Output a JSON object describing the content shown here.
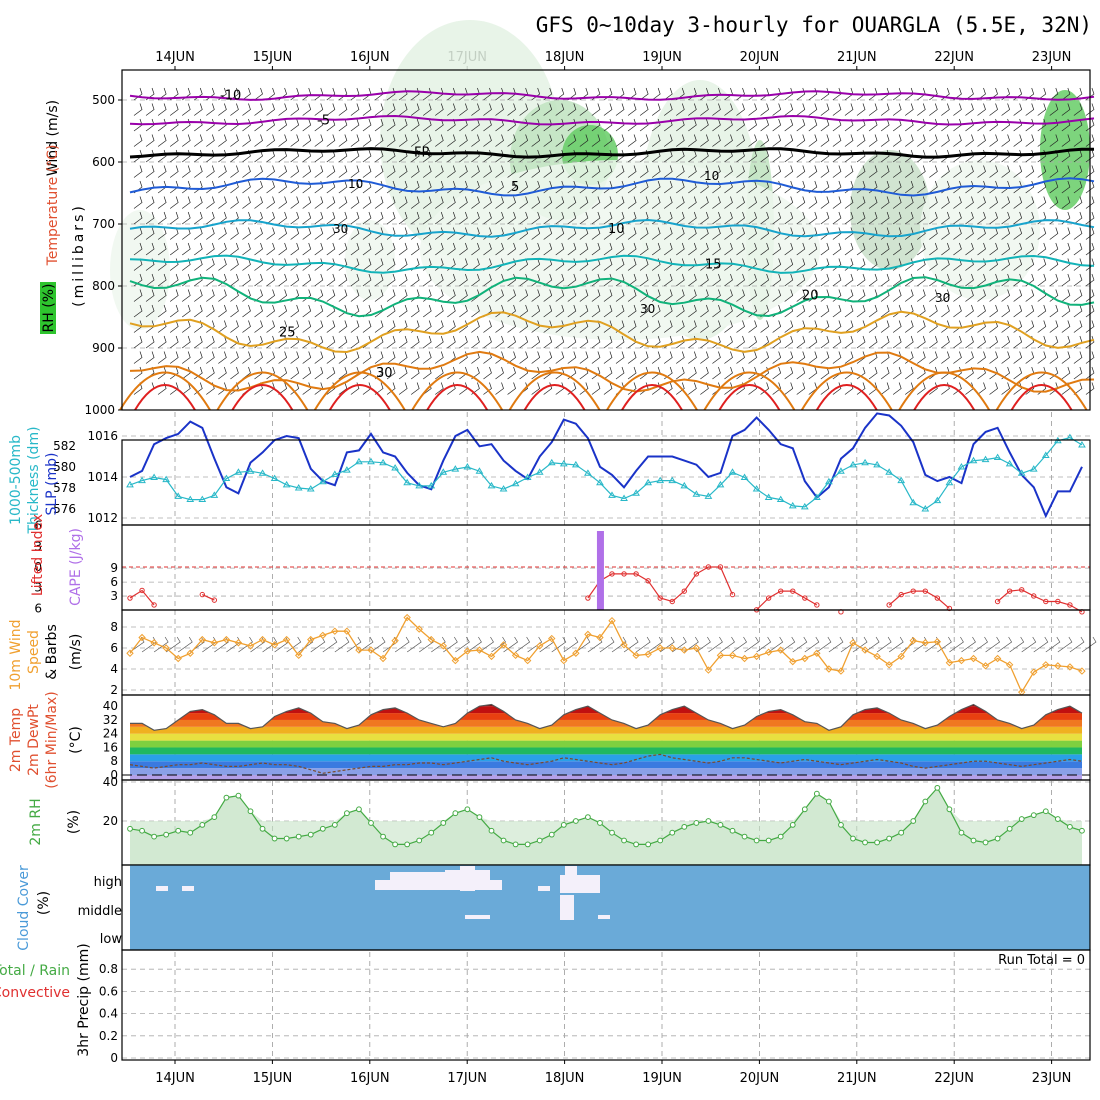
{
  "title": "GFS 0~10day 3-hourly for OUARGLA (5.5E, 32N)",
  "dates": [
    "14JUN",
    "15JUN",
    "16JUN",
    "17JUN",
    "18JUN",
    "19JUN",
    "20JUN",
    "21JUN",
    "22JUN",
    "23JUN"
  ],
  "colors": {
    "temp_cold": "#9900aa",
    "temp_mid": "#1f5bd6",
    "temp_cool": "#17a3cc",
    "temp_warm": "#12b3b8",
    "temp_20": "#10b27a",
    "temp_25": "#e0a020",
    "temp_30": "#e07a10",
    "temp_hot": "#e02020",
    "rh_shade": "#2ec42e",
    "slp": "#1a33c8",
    "thickness": "#28b8c8",
    "lifted_index": "#e03030",
    "cape": "#b070e8",
    "wind10m": "#f0a030",
    "cloud": "#6aaad8",
    "rh2m": "#44aa44"
  },
  "labels": {
    "upper_wind": "Wind (m/s)",
    "upper_temp": "Temperature (°C)",
    "upper_rh": "RH (%)",
    "upper_axis": "(millibars)",
    "thick_1": "1000-500mb",
    "thick_2": "Thickness (dm)",
    "slp": "SLP (mb)",
    "li": "Lifted Index",
    "cape": "CAPE (J/kg)",
    "wind_1": "10m Wind",
    "wind_2": "Speed",
    "wind_3": "& Barbs",
    "wind_unit": "(m/s)",
    "t_1": "2m Temp",
    "t_2": "2m DewPt",
    "t_3": "(6hr Min/Max)",
    "t_unit": "(°C)",
    "rh_1": "2m RH",
    "rh_unit": "(%)",
    "cc_1": "Cloud Cover",
    "cc_unit": "(%)",
    "cc_high": "high",
    "cc_middle": "middle",
    "cc_low": "low",
    "pr_1": "Total / Rain",
    "pr_2": "Convective",
    "pr_3": "3hr Precip (mm)",
    "run_total": "Run Total = 0"
  },
  "chart_data": [
    {
      "type": "line",
      "panel": "upper-air",
      "ylabel": "millibars",
      "yticks": [
        500,
        600,
        700,
        800,
        900,
        1000
      ],
      "isotherms": [
        {
          "name": "-10",
          "pressure": 493
        },
        {
          "name": "-5",
          "pressure": 533
        },
        {
          "name": "FR",
          "pressure": 585
        },
        {
          "name": "5",
          "pressure": 640
        },
        {
          "name": "10",
          "pressure": 708
        },
        {
          "name": "15",
          "pressure": 765
        },
        {
          "name": "20",
          "pressure": 815
        },
        {
          "name": "25",
          "pressure": 875
        },
        {
          "name": "30",
          "pressure": 940
        }
      ],
      "rh_contours": [
        "10",
        "30",
        "30",
        "10",
        "30"
      ]
    },
    {
      "type": "line",
      "panel": "slp-thickness",
      "y1label": "1000-500mb Thickness (dm)",
      "y1ticks": [
        576,
        578,
        580,
        582
      ],
      "y2label": "SLP (mb)",
      "y2ticks": [
        1012,
        1014,
        1016
      ],
      "series": [
        {
          "name": "SLP",
          "values": [
            1014.0,
            1014.3,
            1015.6,
            1015.9,
            1016.1,
            1016.7,
            1016.4,
            1014.9,
            1013.5,
            1013.2,
            1014.7,
            1015.2,
            1015.8,
            1016.0,
            1015.9,
            1014.4,
            1013.8,
            1013.6,
            1015.2,
            1015.3,
            1016.1,
            1015.2,
            1015.0,
            1014.2,
            1013.6,
            1013.4,
            1014.8,
            1016.0,
            1016.3,
            1015.5,
            1015.6,
            1014.8,
            1014.3,
            1013.9,
            1015.0,
            1015.7,
            1016.8,
            1016.6,
            1015.9,
            1014.5,
            1014.1,
            1013.5,
            1014.3,
            1015.0,
            1015.0,
            1015.0,
            1014.8,
            1014.6,
            1014.0,
            1014.2,
            1016.0,
            1016.3,
            1016.9,
            1016.3,
            1015.6,
            1015.4,
            1013.8,
            1013.0,
            1013.5,
            1014.9,
            1015.4,
            1016.4,
            1017.1,
            1017.0,
            1016.5,
            1015.7,
            1014.1,
            1013.8,
            1014.0,
            1013.7,
            1015.6,
            1016.2,
            1016.4,
            1015.2,
            1014.1,
            1013.5,
            1012.1,
            1013.3,
            1013.3,
            1014.5
          ]
        },
        {
          "name": "Thickness",
          "values": [
            578.3,
            578.7,
            579.0,
            578.8,
            577.2,
            576.9,
            576.9,
            577.3,
            578.9,
            579.5,
            579.6,
            579.4,
            578.9,
            578.3,
            578.0,
            577.9,
            578.6,
            579.3,
            579.7,
            580.5,
            580.5,
            580.4,
            579.9,
            578.5,
            578.2,
            578.2,
            579.5,
            579.8,
            580.0,
            579.6,
            578.2,
            577.9,
            578.4,
            579.0,
            579.5,
            580.4,
            580.3,
            580.2,
            579.4,
            578.5,
            577.3,
            577.0,
            577.5,
            578.5,
            578.7,
            578.7,
            578.2,
            577.4,
            577.2,
            578.3,
            579.5,
            579.0,
            577.9,
            577.1,
            576.9,
            576.3,
            576.2,
            577.1,
            578.6,
            579.6,
            580.2,
            580.4,
            580.2,
            579.5,
            578.7,
            576.6,
            576.0,
            576.8,
            578.5,
            580.0,
            580.6,
            580.7,
            580.9,
            580.3,
            579.4,
            579.8,
            581.1,
            582.5,
            582.8,
            582.1
          ]
        }
      ]
    },
    {
      "type": "line",
      "panel": "lifted-index-cape",
      "y1label": "Lifted Index",
      "y1ticks": [
        -6,
        -3,
        0,
        3,
        6
      ],
      "y2label": "CAPE (J/kg)",
      "y2ticks": [
        3,
        6,
        9
      ],
      "series": [
        {
          "name": "Lifted Index",
          "values": [
            4.5,
            3.4,
            5.5,
            7.5,
            7.5,
            7.5,
            4.0,
            4.8,
            7.5,
            7.5,
            7.5,
            7.5,
            7.5,
            7.5,
            7.5,
            7.5,
            7.5,
            7.5,
            7.5,
            7.5,
            7.5,
            7.5,
            7.5,
            7.5,
            7.5,
            7.5,
            7.5,
            7.5,
            7.5,
            7.5,
            7.5,
            7.5,
            7.5,
            7.5,
            7.5,
            7.5,
            7.5,
            7.5,
            4.5,
            2.0,
            1.0,
            1.0,
            1.0,
            2.0,
            4.5,
            5.0,
            3.5,
            1.0,
            0.0,
            0.0,
            4.0,
            7.5,
            6.2,
            4.5,
            3.5,
            3.5,
            4.5,
            5.5,
            7.5,
            6.5,
            7.5,
            7.5,
            7.5,
            5.5,
            4.0,
            3.5,
            3.5,
            4.5,
            6.0,
            7.5,
            7.5,
            7.5,
            5.0,
            3.5,
            3.3,
            4.2,
            5.0,
            5.0,
            5.5,
            6.5
          ]
        },
        {
          "name": "CAPE",
          "bars": [
            {
              "index": 39,
              "value": 18
            }
          ]
        }
      ]
    },
    {
      "type": "line",
      "panel": "wind10m",
      "ylabel": "10m Wind Speed & Barbs (m/s)",
      "yticks": [
        2,
        4,
        6,
        8
      ],
      "series": [
        {
          "name": "10m Wind Speed",
          "values": [
            5.5,
            7.0,
            6.5,
            6.0,
            5.0,
            5.5,
            6.8,
            6.5,
            6.8,
            6.5,
            6.2,
            6.8,
            6.3,
            6.8,
            5.3,
            6.8,
            7.2,
            7.6,
            7.6,
            5.8,
            5.8,
            5.0,
            6.7,
            8.9,
            7.8,
            6.8,
            6.2,
            4.8,
            5.7,
            5.8,
            5.2,
            6.3,
            5.3,
            4.8,
            6.2,
            6.9,
            4.8,
            5.5,
            7.3,
            7.0,
            8.6,
            6.3,
            5.3,
            5.4,
            6.0,
            6.0,
            5.8,
            6.0,
            3.9,
            5.3,
            5.3,
            5.0,
            5.2,
            5.6,
            5.8,
            4.7,
            5.0,
            5.5,
            4.0,
            3.8,
            6.5,
            5.8,
            5.2,
            4.4,
            5.2,
            6.7,
            6.5,
            6.6,
            4.6,
            4.8,
            5.0,
            4.3,
            5.0,
            4.4,
            1.8,
            3.7,
            4.4,
            4.3,
            4.2,
            3.8
          ]
        }
      ]
    },
    {
      "type": "area",
      "panel": "temp2m",
      "ylabel": "2m Temp 2m DewPt (6hr Min/Max) (°C)",
      "yticks": [
        0,
        8,
        16,
        24,
        32,
        40
      ],
      "series": [
        {
          "name": "2m Temp",
          "values": [
            30,
            30,
            26,
            27,
            32,
            37,
            38,
            35,
            30,
            30,
            27,
            28,
            34,
            37,
            39,
            36,
            31,
            30,
            27,
            29,
            35,
            38,
            39,
            36,
            32,
            30,
            28,
            30,
            36,
            40,
            41,
            37,
            32,
            30,
            27,
            29,
            35,
            38,
            40,
            36,
            32,
            30,
            27,
            29,
            35,
            38,
            40,
            36,
            32,
            30,
            27,
            29,
            34,
            37,
            38,
            35,
            31,
            30,
            26,
            28,
            35,
            38,
            39,
            36,
            32,
            30,
            27,
            29,
            34,
            38,
            41,
            37,
            32,
            30,
            27,
            29,
            35,
            38,
            40,
            36
          ]
        },
        {
          "name": "2m DewPt",
          "values": [
            6,
            5,
            4,
            5,
            6,
            6,
            7,
            6,
            5,
            5,
            6,
            7,
            6,
            6,
            5,
            3,
            1,
            2,
            3,
            4,
            5,
            5,
            6,
            6,
            7,
            7,
            6,
            7,
            8,
            9,
            10,
            8,
            7,
            6,
            7,
            8,
            10,
            9,
            8,
            7,
            6,
            7,
            9,
            11,
            12,
            10,
            9,
            8,
            7,
            8,
            10,
            10,
            9,
            8,
            7,
            8,
            9,
            8,
            7,
            6,
            7,
            8,
            9,
            8,
            7,
            5,
            4,
            5,
            6,
            7,
            8,
            8,
            7,
            6,
            5,
            6,
            7,
            8,
            9,
            8
          ]
        }
      ]
    },
    {
      "type": "area",
      "panel": "rh2m",
      "ylabel": "2m RH (%)",
      "yticks": [
        20,
        40
      ],
      "series": [
        {
          "name": "2m RH",
          "values": [
            16,
            15,
            12,
            13,
            15,
            14,
            18,
            22,
            32,
            33,
            25,
            16,
            11,
            11,
            12,
            13,
            16,
            18,
            24,
            26,
            19,
            12,
            8,
            8,
            10,
            14,
            19,
            24,
            26,
            22,
            15,
            10,
            8,
            8,
            10,
            13,
            18,
            20,
            22,
            19,
            14,
            10,
            8,
            8,
            10,
            14,
            17,
            19,
            20,
            18,
            15,
            12,
            10,
            10,
            12,
            18,
            26,
            34,
            30,
            18,
            11,
            9,
            9,
            11,
            14,
            20,
            30,
            37,
            26,
            14,
            10,
            9,
            11,
            16,
            21,
            23,
            25,
            21,
            17,
            15
          ]
        }
      ]
    },
    {
      "type": "heatmap",
      "panel": "cloud-cover",
      "ylabel": "Cloud Cover (%)",
      "rows": [
        "high",
        "middle",
        "low"
      ]
    },
    {
      "type": "bar",
      "panel": "precip",
      "ylabel": "3hr Precip (mm)",
      "yticks": [
        0,
        0.2,
        0.4,
        0.6,
        0.8
      ],
      "ylim": [
        0,
        0.95
      ],
      "values": []
    }
  ]
}
